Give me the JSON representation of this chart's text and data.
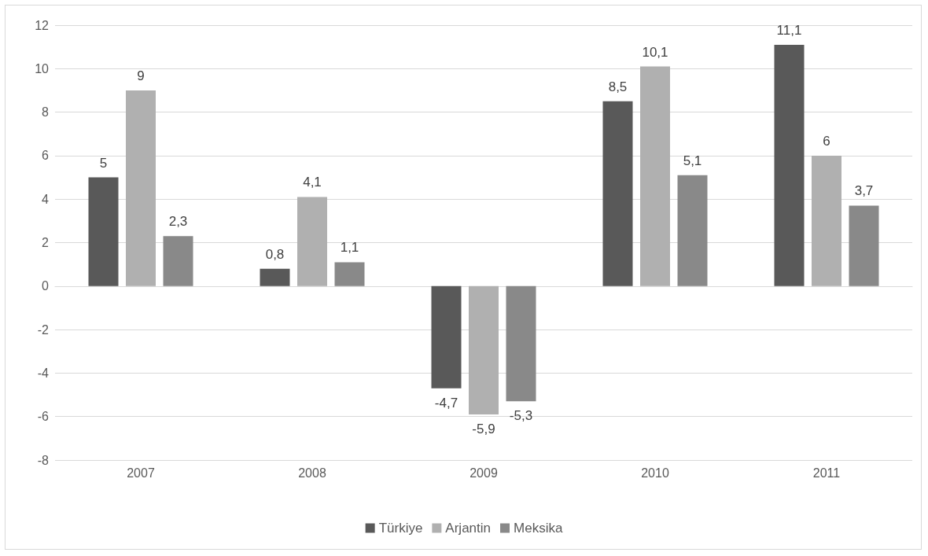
{
  "chart_data": {
    "type": "bar",
    "categories": [
      "2007",
      "2008",
      "2009",
      "2010",
      "2011"
    ],
    "series": [
      {
        "name": "Türkiye",
        "color": "#595959",
        "values": [
          5,
          0.8,
          -4.7,
          8.5,
          11.1
        ],
        "value_labels": [
          "5",
          "0,8",
          "-4,7",
          "8,5",
          "11,1"
        ]
      },
      {
        "name": "Arjantin",
        "color": "#b0b0b0",
        "values": [
          9,
          4.1,
          -5.9,
          10.1,
          6
        ],
        "value_labels": [
          "9",
          "4,1",
          "-5,9",
          "10,1",
          "6"
        ]
      },
      {
        "name": "Meksika",
        "color": "#898989",
        "values": [
          2.3,
          1.1,
          -5.3,
          5.1,
          3.7
        ],
        "value_labels": [
          "2,3",
          "1,1",
          "-5,3",
          "5,1",
          "3,7"
        ]
      }
    ],
    "ylim": [
      -8,
      12
    ],
    "yticks": [
      -8,
      -6,
      -4,
      -2,
      0,
      2,
      4,
      6,
      8,
      10,
      12
    ],
    "grid": "y",
    "legend": "bottom"
  }
}
